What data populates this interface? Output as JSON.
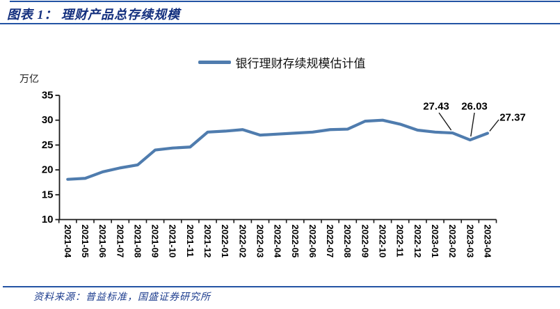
{
  "header": {
    "title": "图表 1： 理财产品总存续规模"
  },
  "legend": {
    "label": "银行理财存续规模估计值"
  },
  "unit_label": "万亿",
  "chart_data": {
    "type": "line",
    "title": "理财产品总存续规模",
    "ylabel": "万亿",
    "xlabel": "",
    "grid": false,
    "legend_position": "top",
    "ylim": [
      10,
      35
    ],
    "yticks": [
      35,
      30,
      25,
      20,
      15,
      10
    ],
    "series": [
      {
        "name": "银行理财存续规模估计值",
        "color": "#4F7CAE",
        "values": [
          18.1,
          18.3,
          19.6,
          20.4,
          21.0,
          24.0,
          24.4,
          24.6,
          27.6,
          27.8,
          28.1,
          27.0,
          27.2,
          27.4,
          27.6,
          28.1,
          28.2,
          29.8,
          30.0,
          29.2,
          28.0,
          27.6,
          27.43,
          26.03,
          27.37
        ]
      }
    ],
    "categories": [
      "2021-04",
      "2021-05",
      "2021-06",
      "2021-07",
      "2021-08",
      "2021-09",
      "2021-10",
      "2021-11",
      "2021-12",
      "2022-01",
      "2022-02",
      "2022-03",
      "2022-04",
      "2022-05",
      "2022-06",
      "2022-07",
      "2022-08",
      "2022-09",
      "2022-10",
      "2022-11",
      "2022-12",
      "2023-01",
      "2023-02",
      "2023-03",
      "2023-04"
    ],
    "annotations": [
      {
        "category": "2023-02",
        "label": "27.43"
      },
      {
        "category": "2023-03",
        "label": "26.03"
      },
      {
        "category": "2023-04",
        "label": "27.37"
      }
    ]
  },
  "footer": {
    "source": "资料来源：普益标准，国盛证券研究所"
  },
  "colors": {
    "title_navy": "#132F7E",
    "rule_blue": "#2353A4",
    "line_blue": "#4F7CAE",
    "axis_black": "#1a1a1a",
    "source_navy": "#1C3C8E"
  }
}
